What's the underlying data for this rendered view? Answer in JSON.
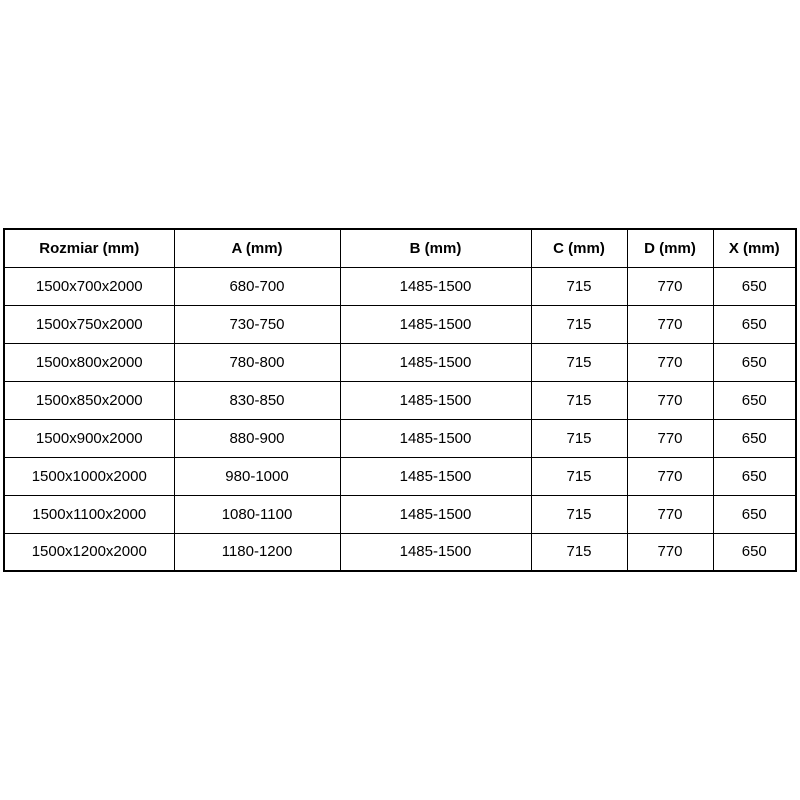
{
  "page": {
    "background_color": "#ffffff",
    "border_color": "#000000",
    "text_color": "#000000"
  },
  "chart_data": {
    "type": "table",
    "title": "",
    "columns": [
      "Rozmiar (mm)",
      "A (mm)",
      "B (mm)",
      "C (mm)",
      "D (mm)",
      "X (mm)"
    ],
    "rows": [
      [
        "1500x700x2000",
        "680-700",
        "1485-1500",
        "715",
        "770",
        "650"
      ],
      [
        "1500x750x2000",
        "730-750",
        "1485-1500",
        "715",
        "770",
        "650"
      ],
      [
        "1500x800x2000",
        "780-800",
        "1485-1500",
        "715",
        "770",
        "650"
      ],
      [
        "1500x850x2000",
        "830-850",
        "1485-1500",
        "715",
        "770",
        "650"
      ],
      [
        "1500x900x2000",
        "880-900",
        "1485-1500",
        "715",
        "770",
        "650"
      ],
      [
        "1500x1000x2000",
        "980-1000",
        "1485-1500",
        "715",
        "770",
        "650"
      ],
      [
        "1500x1100x2000",
        "1080-1100",
        "1485-1500",
        "715",
        "770",
        "650"
      ],
      [
        "1500x1200x2000",
        "1180-1200",
        "1485-1500",
        "715",
        "770",
        "650"
      ]
    ],
    "layout": {
      "grid": true,
      "header_bold": true,
      "text_align": "center"
    }
  }
}
